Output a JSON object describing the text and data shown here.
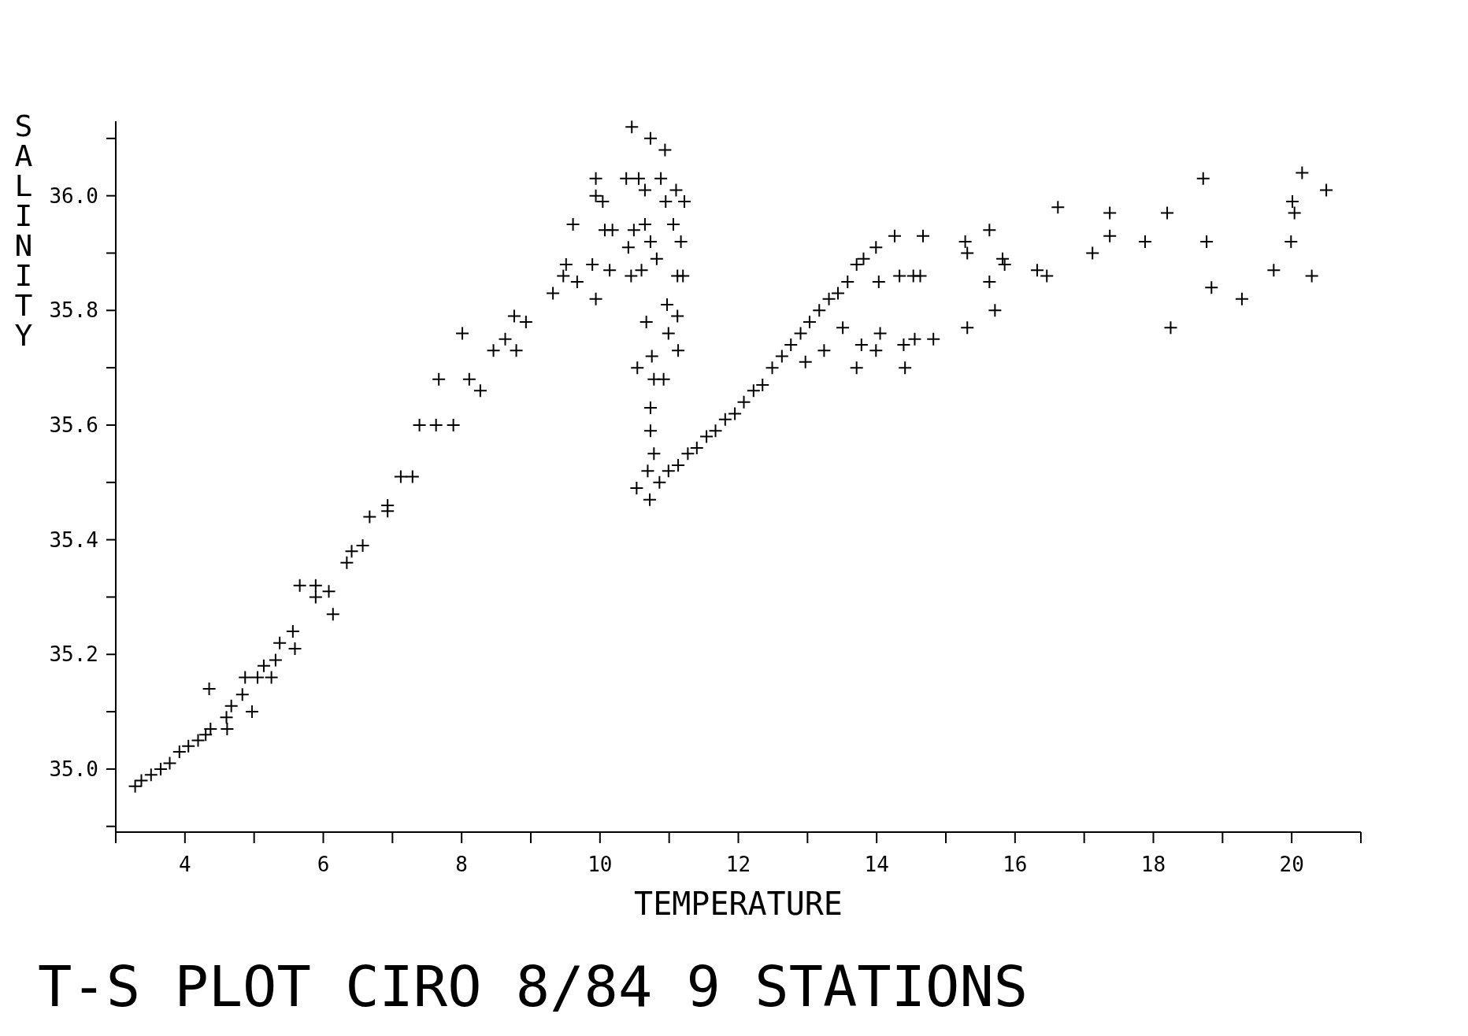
{
  "chart_data": {
    "type": "scatter",
    "title": "T-S PLOT CIRO 8/84 9 STATIONS",
    "xlabel": "TEMPERATURE",
    "ylabel": "SALINITY",
    "marker": "cross",
    "grid": false,
    "xlim": [
      3,
      21
    ],
    "ylim": [
      34.89,
      36.13
    ],
    "xticks": [
      {
        "value": 3,
        "label": null
      },
      4,
      {
        "value": 5,
        "label": null
      },
      6,
      {
        "value": 7,
        "label": null
      },
      8,
      {
        "value": 9,
        "label": null
      },
      10,
      {
        "value": 11,
        "label": null
      },
      12,
      {
        "value": 13,
        "label": null
      },
      14,
      {
        "value": 15,
        "label": null
      },
      16,
      {
        "value": 17,
        "label": null
      },
      18,
      {
        "value": 19,
        "label": null
      },
      20,
      {
        "value": 21,
        "label": null
      }
    ],
    "yticks": [
      {
        "value": 34.9,
        "label": null
      },
      {
        "value": 35,
        "label": "35.0"
      },
      {
        "value": 35.1,
        "label": null
      },
      {
        "value": 35.2,
        "label": "35.2"
      },
      {
        "value": 35.3,
        "label": null
      },
      {
        "value": 35.4,
        "label": "35.4"
      },
      {
        "value": 35.5,
        "label": null
      },
      {
        "value": 35.6,
        "label": "35.6"
      },
      {
        "value": 35.7,
        "label": null
      },
      {
        "value": 35.8,
        "label": "35.8"
      },
      {
        "value": 35.9,
        "label": null
      },
      {
        "value": 36,
        "label": "36.0"
      },
      {
        "value": 36.1,
        "label": null
      }
    ],
    "series": [
      {
        "color": "#000000",
        "x": [
          3.28,
          3.37,
          3.51,
          3.65,
          3.78,
          3.92,
          4.05,
          4.19,
          4.3,
          4.37,
          4.35,
          4.6,
          4.61,
          4.67,
          4.83,
          4.87,
          4.97,
          5.05,
          5.14,
          5.25,
          5.31,
          5.37,
          5.56,
          5.59,
          5.66,
          5.89,
          5.89,
          6.08,
          6.14,
          6.34,
          6.41,
          6.57,
          6.67,
          6.93,
          6.93,
          7.12,
          7.29,
          7.39,
          7.63,
          7.88,
          7.67,
          8.01,
          8.11,
          8.27,
          8.46,
          8.63,
          8.76,
          8.79,
          8.93,
          9.32,
          9.47,
          9.51,
          9.61,
          9.67,
          9.89,
          9.94,
          9.94,
          9.94,
          10.04,
          10.07,
          10.18,
          10.14,
          10.38,
          10.46,
          10.49,
          10.41,
          10.45,
          10.56,
          10.54,
          10.6,
          10.65,
          10.65,
          10.67,
          10.73,
          10.73,
          10.75,
          10.78,
          10.73,
          10.73,
          10.69,
          10.53,
          10.72,
          10.78,
          10.82,
          10.88,
          10.94,
          10.95,
          10.97,
          10.92,
          10.99,
          11.06,
          11.1,
          11.12,
          11.12,
          11.13,
          11.17,
          11.22,
          11.2,
          10.86,
          10.99,
          11.13,
          11.27,
          11.4,
          11.54,
          11.67,
          11.81,
          11.95,
          12.08,
          12.22,
          12.35,
          12.49,
          12.63,
          12.76,
          12.9,
          13.03,
          13.17,
          13.31,
          13.44,
          13.58,
          13.71,
          13.81,
          13.99,
          14.26,
          14.67,
          14.03,
          14.33,
          14.53,
          14.63,
          12.97,
          13.24,
          13.51,
          13.71,
          13.78,
          13.99,
          14.05,
          14.39,
          14.41,
          14.55,
          14.82,
          15.28,
          15.31,
          15.31,
          15.63,
          15.63,
          15.71,
          15.82,
          15.85,
          16.32,
          16.46,
          16.62,
          17.12,
          17.37,
          17.37,
          17.88,
          18.2,
          18.25,
          18.72,
          18.77,
          18.84,
          19.28,
          19.74,
          19.99,
          20.01,
          20.04,
          20.15,
          20.29,
          20.5
        ],
        "values": [
          34.97,
          34.98,
          34.99,
          35.0,
          35.01,
          35.03,
          35.04,
          35.05,
          35.06,
          35.07,
          35.14,
          35.09,
          35.07,
          35.11,
          35.13,
          35.16,
          35.1,
          35.16,
          35.18,
          35.16,
          35.19,
          35.22,
          35.24,
          35.21,
          35.32,
          35.32,
          35.3,
          35.31,
          35.27,
          35.36,
          35.38,
          35.39,
          35.44,
          35.46,
          35.45,
          35.51,
          35.51,
          35.6,
          35.6,
          35.6,
          35.68,
          35.76,
          35.68,
          35.66,
          35.73,
          35.75,
          35.79,
          35.73,
          35.78,
          35.83,
          35.86,
          35.88,
          35.95,
          35.85,
          35.88,
          35.82,
          36.03,
          36.0,
          35.99,
          35.94,
          35.94,
          35.87,
          36.03,
          36.12,
          35.94,
          35.91,
          35.86,
          36.03,
          35.7,
          35.87,
          36.01,
          35.95,
          35.78,
          36.1,
          35.92,
          35.72,
          35.68,
          35.63,
          35.59,
          35.52,
          35.49,
          35.47,
          35.55,
          35.89,
          36.03,
          36.08,
          35.99,
          35.81,
          35.68,
          35.76,
          35.95,
          36.01,
          35.86,
          35.79,
          35.73,
          35.92,
          35.99,
          35.86,
          35.5,
          35.52,
          35.53,
          35.55,
          35.56,
          35.58,
          35.59,
          35.61,
          35.62,
          35.64,
          35.66,
          35.67,
          35.7,
          35.72,
          35.74,
          35.76,
          35.78,
          35.8,
          35.82,
          35.83,
          35.85,
          35.88,
          35.89,
          35.91,
          35.93,
          35.93,
          35.85,
          35.86,
          35.86,
          35.86,
          35.71,
          35.73,
          35.77,
          35.7,
          35.74,
          35.73,
          35.76,
          35.74,
          35.7,
          35.75,
          35.75,
          35.92,
          35.9,
          35.77,
          35.94,
          35.85,
          35.8,
          35.89,
          35.88,
          35.87,
          35.86,
          35.98,
          35.9,
          35.97,
          35.93,
          35.92,
          35.97,
          35.77,
          36.03,
          35.92,
          35.84,
          35.82,
          35.87,
          35.92,
          35.99,
          35.97,
          36.04,
          35.86,
          36.01
        ]
      }
    ]
  }
}
